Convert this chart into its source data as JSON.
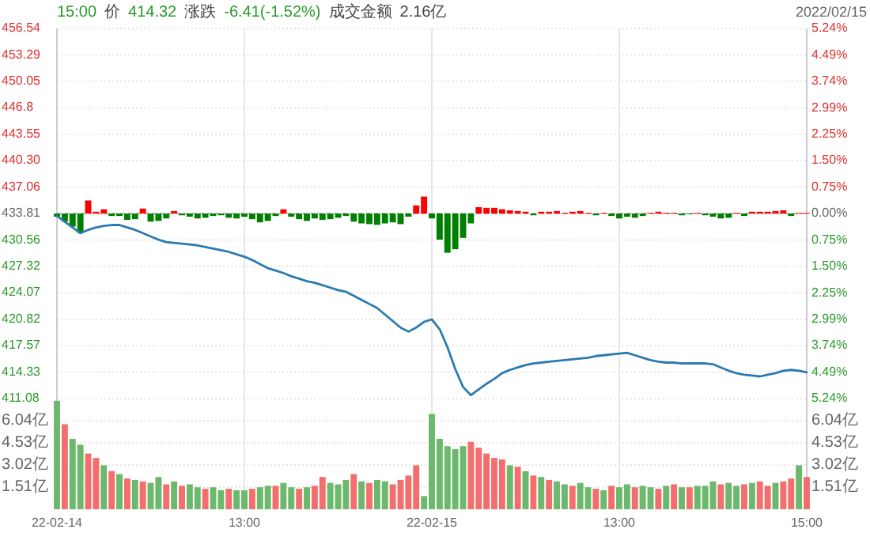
{
  "chart_data": [
    {
      "type": "line",
      "ylim": [
        411.08,
        456.54
      ],
      "y2lim": [
        -5.24,
        5.24
      ],
      "grid": true,
      "categories": [
        null,
        null,
        null,
        null,
        null,
        null,
        null,
        null,
        null,
        null,
        null,
        null,
        null,
        null,
        null,
        null,
        null,
        null,
        null,
        null,
        null,
        null,
        null,
        null,
        null,
        null,
        null,
        null,
        null,
        null,
        null,
        null,
        null,
        null,
        null,
        null,
        null,
        null,
        null,
        null,
        null,
        null,
        null,
        null,
        null,
        null,
        null,
        null,
        null,
        null,
        null,
        null,
        null,
        null,
        null,
        null,
        null,
        null,
        null,
        null,
        null,
        null,
        null,
        null,
        null,
        null,
        null,
        null,
        null,
        null,
        null,
        null,
        null,
        null,
        null,
        null,
        null,
        null,
        null,
        null,
        null,
        null,
        null,
        null,
        null,
        null,
        null,
        null,
        null,
        null,
        null,
        null,
        null,
        null,
        null,
        null,
        null
      ],
      "yticks": [
        411.08,
        414.33,
        417.57,
        420.82,
        424.07,
        427.32,
        430.56,
        433.81,
        437.06,
        {
          "value": 440.3,
          "label": "440.30"
        },
        443.55,
        446.8,
        450.05,
        453.29,
        456.54
      ],
      "y2ticks": [
        {
          "value": -5.24,
          "label": "5.24%"
        },
        {
          "value": -4.49,
          "label": "4.49%"
        },
        {
          "value": -3.74,
          "label": "3.74%"
        },
        {
          "value": -2.99,
          "label": "2.99%"
        },
        {
          "value": -2.25,
          "label": "2.25%"
        },
        {
          "value": -1.5,
          "label": "1.50%"
        },
        {
          "value": -0.75,
          "label": "0.75%"
        },
        {
          "value": 0,
          "label": "0.00%"
        },
        {
          "value": 0.75,
          "label": "0.75%"
        },
        {
          "value": 1.5,
          "label": "1.50%"
        },
        {
          "value": 2.25,
          "label": "2.25%"
        },
        {
          "value": 2.99,
          "label": "2.99%"
        },
        {
          "value": 3.74,
          "label": "3.74%"
        },
        {
          "value": 4.49,
          "label": "4.49%"
        },
        {
          "value": 5.24,
          "label": "5.24%"
        }
      ],
      "ref_lines": [
        {
          "axis": "y",
          "value": 433.81,
          "line_style": "dashed",
          "color": "#bbbbbb"
        }
      ],
      "annotations": [
        "15:00",
        "价",
        "414.32",
        "涨跌",
        "-6.41(-1.52%)",
        "成交金额",
        "2.16亿",
        "2022/02/15"
      ],
      "series": [
        {
          "type": "bar",
          "axis": "y2",
          "values": [
            -0.09,
            -0.23,
            -0.37,
            -0.55,
            0.37,
            0.05,
            0.12,
            -0.07,
            -0.07,
            -0.18,
            -0.16,
            0.14,
            -0.23,
            -0.21,
            -0.14,
            0.07,
            -0.05,
            -0.09,
            -0.14,
            -0.12,
            -0.07,
            -0.05,
            -0.12,
            -0.14,
            -0.09,
            -0.16,
            -0.25,
            -0.21,
            -0.07,
            0.12,
            -0.09,
            -0.16,
            -0.21,
            -0.14,
            -0.18,
            -0.16,
            -0.12,
            -0.07,
            -0.23,
            -0.28,
            -0.3,
            -0.32,
            -0.28,
            -0.25,
            -0.3,
            -0.09,
            0.23,
            0.48,
            -0.14,
            -0.74,
            -1.11,
            -1.01,
            -0.69,
            -0.28,
            0.18,
            0.16,
            0.16,
            0.12,
            0.09,
            0.07,
            0.05,
            -0.05,
            0.05,
            0.05,
            0.07,
            0.02,
            0.05,
            0.07,
            0.02,
            -0.05,
            0.02,
            -0.07,
            -0.14,
            -0.09,
            -0.12,
            -0.07,
            0.02,
            0.05,
            0.02,
            0.02,
            -0.05,
            -0.02,
            0.02,
            -0.05,
            -0.09,
            -0.14,
            -0.12,
            0.02,
            -0.07,
            0.05,
            0.05,
            0.05,
            0.07,
            0.09,
            -0.07,
            0.02,
            0.02
          ],
          "colors": [
            "#008000",
            "#008000",
            "#008000",
            "#008000",
            "#ff0000",
            "#ff0000",
            "#ff0000",
            "#008000",
            "#008000",
            "#008000",
            "#008000",
            "#ff0000",
            "#008000",
            "#008000",
            "#008000",
            "#ff0000",
            "#008000",
            "#008000",
            "#008000",
            "#008000",
            "#008000",
            "#008000",
            "#008000",
            "#008000",
            "#008000",
            "#008000",
            "#008000",
            "#008000",
            "#008000",
            "#ff0000",
            "#008000",
            "#008000",
            "#008000",
            "#008000",
            "#008000",
            "#008000",
            "#008000",
            "#008000",
            "#008000",
            "#008000",
            "#008000",
            "#008000",
            "#008000",
            "#008000",
            "#008000",
            "#008000",
            "#ff0000",
            "#ff0000",
            "#008000",
            "#008000",
            "#008000",
            "#008000",
            "#008000",
            "#008000",
            "#ff0000",
            "#ff0000",
            "#ff0000",
            "#ff0000",
            "#ff0000",
            "#ff0000",
            "#ff0000",
            "#008000",
            "#ff0000",
            "#ff0000",
            "#ff0000",
            "#ff0000",
            "#ff0000",
            "#ff0000",
            "#ff0000",
            "#008000",
            "#ff0000",
            "#008000",
            "#008000",
            "#008000",
            "#008000",
            "#008000",
            "#ff0000",
            "#ff0000",
            "#ff0000",
            "#ff0000",
            "#008000",
            "#008000",
            "#ff0000",
            "#008000",
            "#008000",
            "#008000",
            "#008000",
            "#ff0000",
            "#008000",
            "#ff0000",
            "#ff0000",
            "#ff0000",
            "#ff0000",
            "#ff0000",
            "#008000",
            "#ff0000",
            "#ff0000"
          ]
        },
        {
          "color": "#2b7bb0",
          "values": [
            433.5,
            432.8,
            432.1,
            431.4,
            431.8,
            432.1,
            432.3,
            432.4,
            432.4,
            432.1,
            431.8,
            431.4,
            431.0,
            430.6,
            430.3,
            430.2,
            430.1,
            430.0,
            429.9,
            429.7,
            429.5,
            429.3,
            429.1,
            428.8,
            428.5,
            428.1,
            427.6,
            427.1,
            426.8,
            426.5,
            426.1,
            425.8,
            425.5,
            425.3,
            425.0,
            424.7,
            424.4,
            424.2,
            423.7,
            423.2,
            422.7,
            422.2,
            421.4,
            420.6,
            419.8,
            419.3,
            419.8,
            420.5,
            420.8,
            419.6,
            417.4,
            414.7,
            412.5,
            411.5,
            412.2,
            412.9,
            413.5,
            414.2,
            414.6,
            414.9,
            415.2,
            415.4,
            415.5,
            415.6,
            415.7,
            415.8,
            415.9,
            416.0,
            416.1,
            416.3,
            416.4,
            416.5,
            416.6,
            416.7,
            416.4,
            416.1,
            415.8,
            415.6,
            415.5,
            415.5,
            415.4,
            415.4,
            415.4,
            415.4,
            415.3,
            414.9,
            414.5,
            414.2,
            414.0,
            413.9,
            413.8,
            414.0,
            414.2,
            414.5,
            414.6,
            414.5,
            414.3
          ]
        }
      ]
    },
    {
      "type": "bar",
      "ylim": [
        0,
        7.55
      ],
      "y2lim": [
        0,
        7.55
      ],
      "grid": true,
      "categories": [
        "22-02-14",
        null,
        null,
        null,
        null,
        null,
        null,
        null,
        null,
        null,
        null,
        null,
        null,
        null,
        null,
        null,
        null,
        null,
        null,
        null,
        null,
        null,
        null,
        null,
        "13:00",
        null,
        null,
        null,
        null,
        null,
        null,
        null,
        null,
        null,
        null,
        null,
        null,
        null,
        null,
        null,
        null,
        null,
        null,
        null,
        null,
        null,
        null,
        null,
        "22-02-15",
        null,
        null,
        null,
        null,
        null,
        null,
        null,
        null,
        null,
        null,
        null,
        null,
        null,
        null,
        null,
        null,
        null,
        null,
        null,
        null,
        null,
        null,
        null,
        "13:00",
        null,
        null,
        null,
        null,
        null,
        null,
        null,
        null,
        null,
        null,
        null,
        null,
        null,
        null,
        null,
        null,
        null,
        null,
        null,
        null,
        null,
        null,
        null,
        "15:00"
      ],
      "yticks": [
        {
          "value": 1.51,
          "label": "1.51亿"
        },
        {
          "value": 3.02,
          "label": "3.02亿"
        },
        {
          "value": 4.53,
          "label": "4.53亿"
        },
        {
          "value": 6.04,
          "label": "6.04亿"
        }
      ],
      "y2ticks": [
        {
          "value": 1.51,
          "label": "1.51亿"
        },
        {
          "value": 3.02,
          "label": "3.02亿"
        },
        {
          "value": 4.53,
          "label": "4.53亿"
        },
        {
          "value": 6.04,
          "label": "6.04亿"
        }
      ],
      "values": [
        7.4,
        5.8,
        4.8,
        4.4,
        3.8,
        3.5,
        3.0,
        2.6,
        2.4,
        2.1,
        2.0,
        1.9,
        1.8,
        2.2,
        1.7,
        1.9,
        1.6,
        1.7,
        1.5,
        1.4,
        1.5,
        1.3,
        1.4,
        1.3,
        1.3,
        1.4,
        1.5,
        1.6,
        1.6,
        1.8,
        1.5,
        1.4,
        1.5,
        1.6,
        2.2,
        1.8,
        1.7,
        2.0,
        2.4,
        1.9,
        1.8,
        2.0,
        1.9,
        1.7,
        2.0,
        2.3,
        3.0,
        0.9,
        6.5,
        4.8,
        4.3,
        4.1,
        4.3,
        4.6,
        4.2,
        3.8,
        3.5,
        3.4,
        3.0,
        2.9,
        2.6,
        2.3,
        2.2,
        2.0,
        1.9,
        1.7,
        1.6,
        1.8,
        1.5,
        1.4,
        1.3,
        1.6,
        1.5,
        1.7,
        1.5,
        1.6,
        1.5,
        1.4,
        1.6,
        1.7,
        1.5,
        1.5,
        1.6,
        1.6,
        1.9,
        1.7,
        1.8,
        1.6,
        1.7,
        1.8,
        1.9,
        1.6,
        1.8,
        1.9,
        2.1,
        3.0,
        2.2
      ],
      "colors": [
        "#6cb86c",
        "#f46e6e",
        "#6cb86c",
        "#6cb86c",
        "#f46e6e",
        "#f46e6e",
        "#6cb86c",
        "#f46e6e",
        "#6cb86c",
        "#f46e6e",
        "#6cb86c",
        "#f46e6e",
        "#6cb86c",
        "#6cb86c",
        "#f46e6e",
        "#6cb86c",
        "#f46e6e",
        "#6cb86c",
        "#6cb86c",
        "#f46e6e",
        "#6cb86c",
        "#6cb86c",
        "#f46e6e",
        "#6cb86c",
        "#6cb86c",
        "#f46e6e",
        "#6cb86c",
        "#6cb86c",
        "#f46e6e",
        "#6cb86c",
        "#6cb86c",
        "#f46e6e",
        "#6cb86c",
        "#f46e6e",
        "#f46e6e",
        "#6cb86c",
        "#6cb86c",
        "#6cb86c",
        "#f46e6e",
        "#6cb86c",
        "#f46e6e",
        "#6cb86c",
        "#6cb86c",
        "#f46e6e",
        "#f46e6e",
        "#f46e6e",
        "#f46e6e",
        "#6cb86c",
        "#6cb86c",
        "#6cb86c",
        "#6cb86c",
        "#6cb86c",
        "#6cb86c",
        "#f46e6e",
        "#f46e6e",
        "#f46e6e",
        "#f46e6e",
        "#f46e6e",
        "#6cb86c",
        "#f46e6e",
        "#6cb86c",
        "#f46e6e",
        "#6cb86c",
        "#f46e6e",
        "#6cb86c",
        "#6cb86c",
        "#f46e6e",
        "#6cb86c",
        "#6cb86c",
        "#f46e6e",
        "#6cb86c",
        "#f46e6e",
        "#6cb86c",
        "#6cb86c",
        "#f46e6e",
        "#6cb86c",
        "#6cb86c",
        "#f46e6e",
        "#6cb86c",
        "#f46e6e",
        "#6cb86c",
        "#f46e6e",
        "#6cb86c",
        "#6cb86c",
        "#6cb86c",
        "#f46e6e",
        "#6cb86c",
        "#6cb86c",
        "#f46e6e",
        "#6cb86c",
        "#f46e6e",
        "#f46e6e",
        "#6cb86c",
        "#f46e6e",
        "#f46e6e",
        "#6cb86c",
        "#f46e6e"
      ]
    }
  ]
}
